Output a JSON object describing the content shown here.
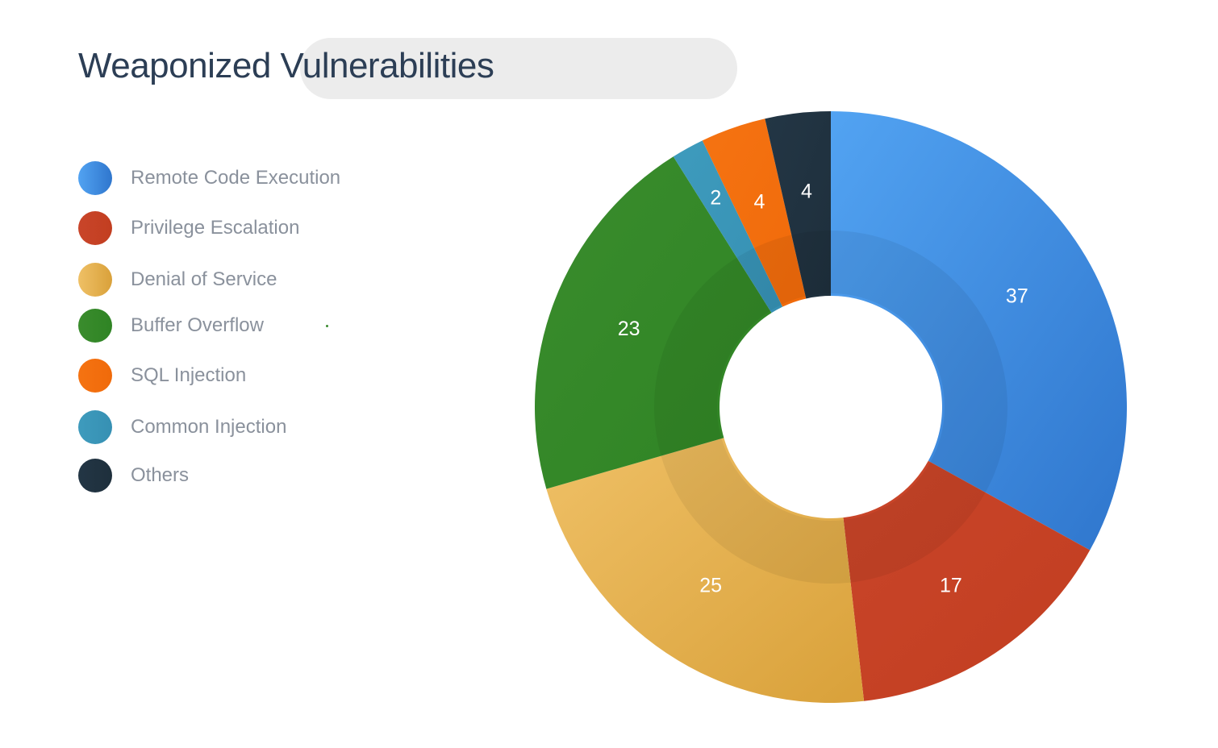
{
  "chart_data": {
    "type": "pie",
    "variant": "donut",
    "title": "Weaponized Vulnerabilities",
    "categories": [
      "Remote Code Execution",
      "Privilege Escalation",
      "Denial of Service",
      "Buffer Overflow",
      "SQL Injection",
      "Common Injection",
      "Others"
    ],
    "values": [
      37,
      17,
      25,
      23,
      4,
      2,
      4
    ],
    "slice_order_clockwise_from_top": [
      "Remote Code Execution",
      "Privilege Escalation",
      "Denial of Service",
      "Buffer Overflow",
      "Common Injection",
      "SQL Injection",
      "Others"
    ],
    "colors": {
      "Remote Code Execution": [
        "#52a3f2",
        "#2f76cd"
      ],
      "Privilege Escalation": [
        "#c9452a",
        "#c23e20"
      ],
      "Denial of Service": [
        "#efc066",
        "#d9a13a"
      ],
      "Buffer Overflow": [
        "#3a8c2d",
        "#2f8424"
      ],
      "SQL Injection": [
        "#f57312",
        "#f06a0a"
      ],
      "Common Injection": [
        "#3e9bbd",
        "#3690b3"
      ],
      "Others": [
        "#233645",
        "#1e2f3c"
      ]
    },
    "legend_position": "left"
  }
}
